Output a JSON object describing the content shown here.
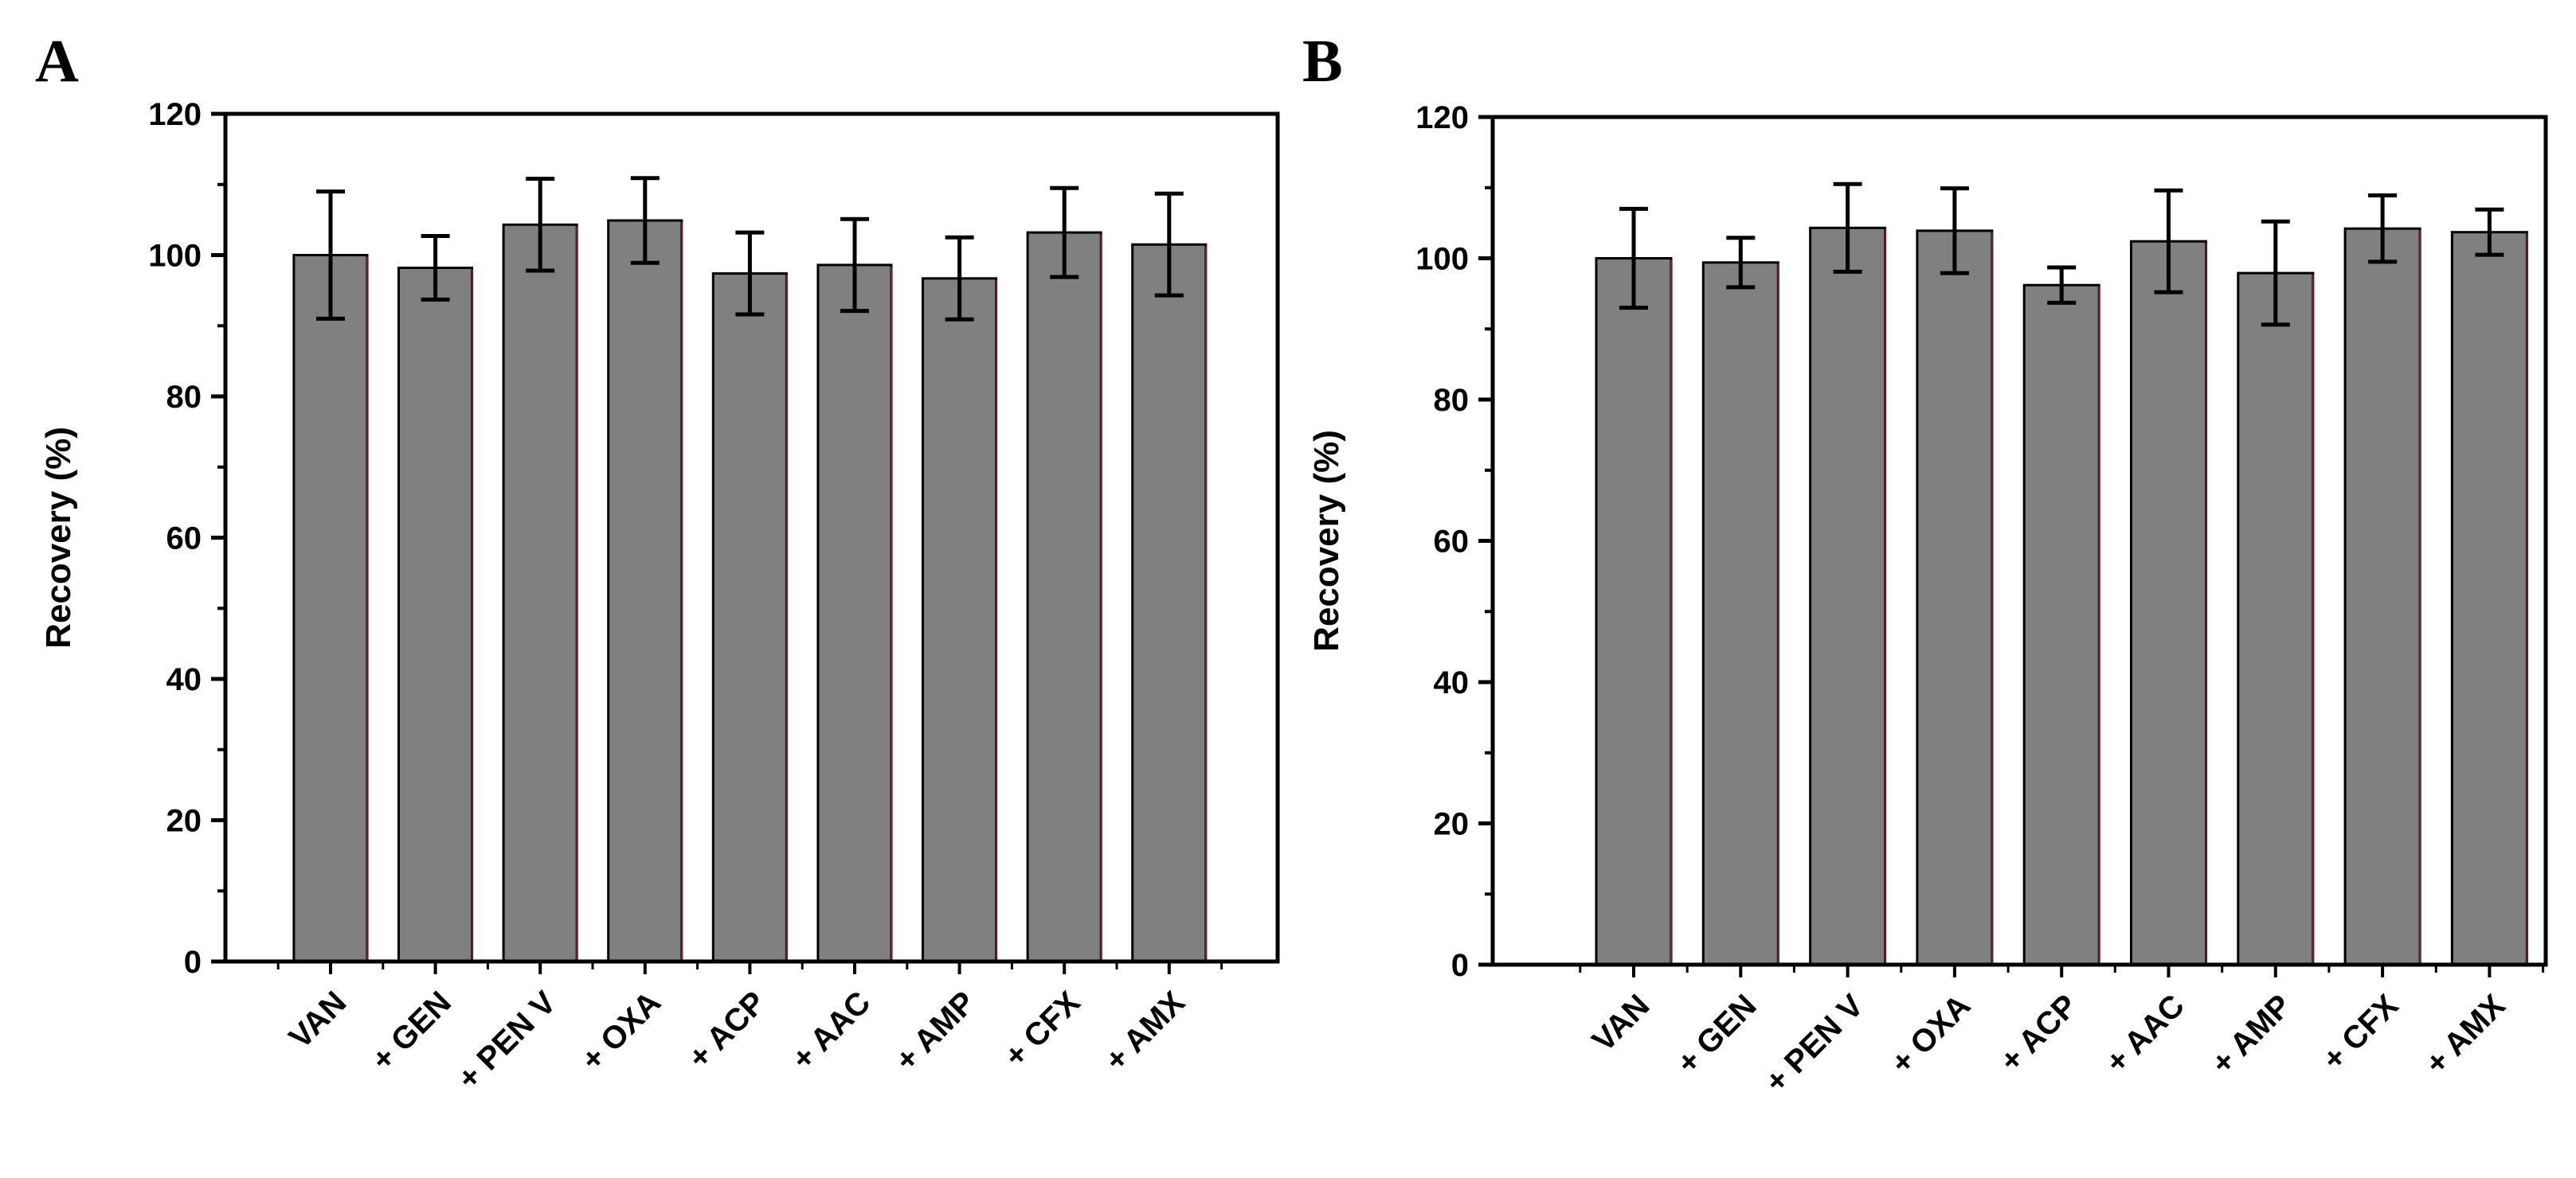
{
  "figure": {
    "panels": [
      {
        "letter": "A"
      },
      {
        "letter": "B"
      }
    ]
  },
  "chart_data": [
    {
      "panel": "A",
      "type": "bar",
      "title": "",
      "xlabel": "",
      "ylabel": "Recovery (%)",
      "ylim": [
        0,
        120
      ],
      "yticks": [
        0,
        20,
        40,
        60,
        80,
        100,
        120
      ],
      "categories": [
        "VAN",
        "+ GEN",
        "+ PEN V",
        "+ OXA",
        "+ ACP",
        "+ AAC",
        "+ AMP",
        "+ CFX",
        "+ AMX"
      ],
      "values": [
        100.0,
        98.2,
        104.3,
        104.9,
        97.4,
        98.6,
        96.7,
        103.2,
        101.5
      ],
      "errors": [
        9.0,
        4.5,
        6.5,
        6.0,
        5.8,
        6.5,
        5.8,
        6.3,
        7.2
      ],
      "bar_color": "#808080",
      "bar_edge_color": "#000000",
      "bar_edge_accent": "#7a1e2e",
      "grid": false
    },
    {
      "panel": "B",
      "type": "bar",
      "title": "",
      "xlabel": "",
      "ylabel": "Recovery (%)",
      "ylim": [
        0,
        120
      ],
      "yticks": [
        0,
        20,
        40,
        60,
        80,
        100,
        120
      ],
      "categories": [
        "VAN",
        "+ GEN",
        "+ PEN V",
        "+ OXA",
        "+ ACP",
        "+ AAC",
        "+ AMP",
        "+ CFX",
        "+ AMX"
      ],
      "values": [
        100.0,
        99.4,
        104.3,
        103.9,
        96.2,
        102.4,
        97.9,
        104.2,
        103.7
      ],
      "errors": [
        7.0,
        3.5,
        6.2,
        6.0,
        2.5,
        7.2,
        7.3,
        4.7,
        3.2
      ],
      "bar_color": "#808080",
      "bar_edge_color": "#000000",
      "bar_edge_accent": "#7a1e2e",
      "grid": false
    }
  ]
}
